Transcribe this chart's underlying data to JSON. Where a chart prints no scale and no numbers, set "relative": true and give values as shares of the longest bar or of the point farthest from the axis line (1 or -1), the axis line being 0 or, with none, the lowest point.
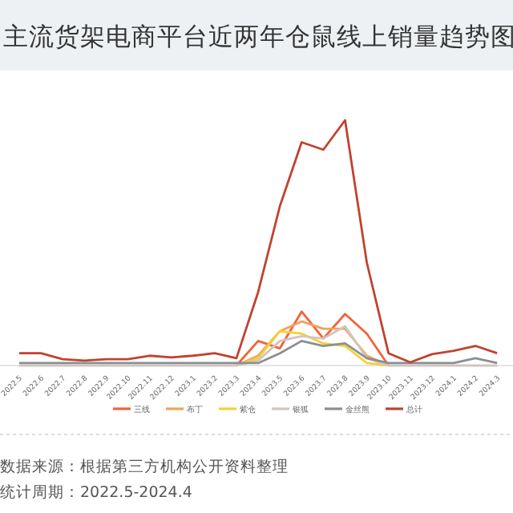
{
  "chart_data": {
    "type": "line",
    "title": "主流货架电商平台近两年仓鼠线上销量趋势图",
    "relative": true,
    "legend": "bottom",
    "marker": "none",
    "categories": [
      "2022.5",
      "2022.6",
      "2022.7",
      "2022.8",
      "2022.9",
      "2022.10",
      "2022.11",
      "2022.12",
      "2023.1",
      "2023.2",
      "2023.3",
      "2023.4",
      "2023.5",
      "2023.6",
      "2023.7",
      "2023.8",
      "2023.9",
      "2023.10",
      "2023.11",
      "2023.12",
      "2024.1",
      "2024.2",
      "2024.3"
    ],
    "series": [
      {
        "name": "三线",
        "color": "#f4623a",
        "values": [
          null,
          null,
          null,
          null,
          null,
          null,
          null,
          null,
          null,
          null,
          0,
          0.1,
          0.07,
          0.22,
          0.11,
          0.21,
          0.13,
          0,
          null,
          null,
          null,
          null,
          null
        ]
      },
      {
        "name": "布丁",
        "color": "#f5a05a",
        "values": [
          null,
          null,
          null,
          null,
          null,
          null,
          null,
          null,
          null,
          null,
          0,
          0.04,
          0.14,
          0.18,
          0.15,
          0.15,
          0.04,
          0,
          null,
          null,
          null,
          null,
          null
        ]
      },
      {
        "name": "紫仓",
        "color": "#f5d033",
        "values": [
          null,
          null,
          null,
          null,
          null,
          null,
          null,
          null,
          null,
          null,
          0,
          0.03,
          0.14,
          0.13,
          0.09,
          0.08,
          0.01,
          0,
          null,
          null,
          null,
          null,
          null
        ]
      },
      {
        "name": "银狐",
        "color": "#cfc7bf",
        "values": [
          0,
          0,
          0,
          0,
          0,
          0,
          0,
          0,
          0,
          0,
          0,
          0.02,
          0.1,
          0.12,
          0.11,
          0.16,
          0.03,
          0,
          0,
          0,
          0,
          0,
          0
        ]
      },
      {
        "name": "金丝熊",
        "color": "#8a8f94",
        "values": [
          0.01,
          0.01,
          0.01,
          0.01,
          0.01,
          0.01,
          0.01,
          0.01,
          0.01,
          0.01,
          0.01,
          0.01,
          0.05,
          0.1,
          0.08,
          0.09,
          0.03,
          0.01,
          0.01,
          0.01,
          0.01,
          0.03,
          0.01
        ]
      },
      {
        "name": "总计",
        "color": "#c0432f",
        "values": [
          0.05,
          0.05,
          0.026,
          0.02,
          0.026,
          0.026,
          0.04,
          0.033,
          0.04,
          0.05,
          0.03,
          0.3,
          0.65,
          0.91,
          0.88,
          1,
          0.42,
          0.05,
          0.013,
          0.046,
          0.06,
          0.08,
          0.05
        ]
      }
    ],
    "annotations": [
      "数据来源：根据第三方机构公开资料整理",
      "统计周期：2022.5-2024.4"
    ]
  }
}
